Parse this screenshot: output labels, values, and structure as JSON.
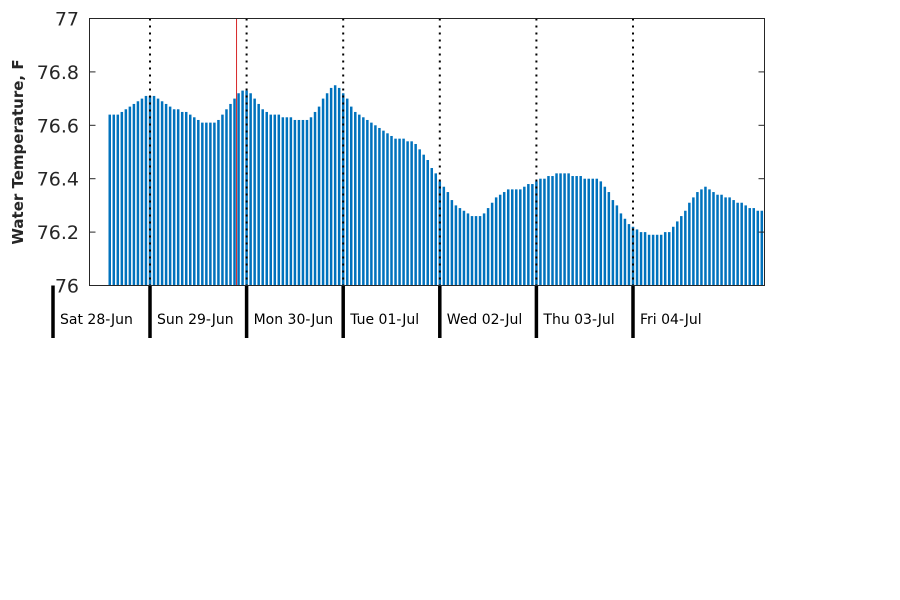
{
  "chart_data": {
    "type": "bar",
    "title": "",
    "xlabel": "",
    "ylabel": "Water Temperature, F",
    "ylim": [
      76,
      77
    ],
    "yticks": [
      "76",
      "76.2",
      "76.4",
      "76.6",
      "76.8",
      "77"
    ],
    "grid": false,
    "colors": {
      "bar": "#0072bd",
      "marker": "#d62728",
      "axis": "#262626",
      "divider": "#000000"
    },
    "samples_per_day": 24,
    "start_hour_offset": 10,
    "day_labels": [
      "Sat 28-Jun",
      "Sun 29-Jun",
      "Mon 30-Jun",
      "Tue 01-Jul",
      "Wed 02-Jul",
      "Thu 03-Jul",
      "Fri 04-Jul"
    ],
    "current_time_marker": {
      "day": "Sun 29-Jun",
      "hour": 21.5
    },
    "values": [
      76.64,
      76.64,
      76.64,
      76.65,
      76.66,
      76.67,
      76.68,
      76.69,
      76.7,
      76.71,
      76.71,
      76.71,
      76.7,
      76.69,
      76.68,
      76.67,
      76.66,
      76.66,
      76.65,
      76.65,
      76.64,
      76.63,
      76.62,
      76.61,
      76.61,
      76.61,
      76.61,
      76.62,
      76.64,
      76.66,
      76.68,
      76.7,
      76.72,
      76.73,
      76.73,
      76.72,
      76.7,
      76.68,
      76.66,
      76.65,
      76.64,
      76.64,
      76.64,
      76.63,
      76.63,
      76.63,
      76.62,
      76.62,
      76.62,
      76.62,
      76.63,
      76.65,
      76.67,
      76.7,
      76.72,
      76.74,
      76.75,
      76.74,
      76.72,
      76.7,
      76.67,
      76.65,
      76.64,
      76.63,
      76.62,
      76.61,
      76.6,
      76.59,
      76.58,
      76.57,
      76.56,
      76.55,
      76.55,
      76.55,
      76.54,
      76.54,
      76.53,
      76.51,
      76.49,
      76.47,
      76.44,
      76.42,
      76.39,
      76.37,
      76.35,
      76.32,
      76.3,
      76.29,
      76.28,
      76.27,
      76.26,
      76.26,
      76.26,
      76.27,
      76.29,
      76.31,
      76.33,
      76.34,
      76.35,
      76.36,
      76.36,
      76.36,
      76.36,
      76.37,
      76.38,
      76.38,
      76.39,
      76.4,
      76.4,
      76.41,
      76.41,
      76.42,
      76.42,
      76.42,
      76.42,
      76.41,
      76.41,
      76.41,
      76.4,
      76.4,
      76.4,
      76.4,
      76.39,
      76.37,
      76.35,
      76.32,
      76.3,
      76.27,
      76.25,
      76.23,
      76.22,
      76.21,
      76.2,
      76.2,
      76.19,
      76.19,
      76.19,
      76.19,
      76.2,
      76.2,
      76.22,
      76.24,
      76.26,
      76.28,
      76.31,
      76.33,
      76.35,
      76.36,
      76.37,
      76.36,
      76.35,
      76.34,
      76.34,
      76.33,
      76.33,
      76.32,
      76.31,
      76.31,
      76.3,
      76.29,
      76.29,
      76.28,
      76.28
    ]
  }
}
